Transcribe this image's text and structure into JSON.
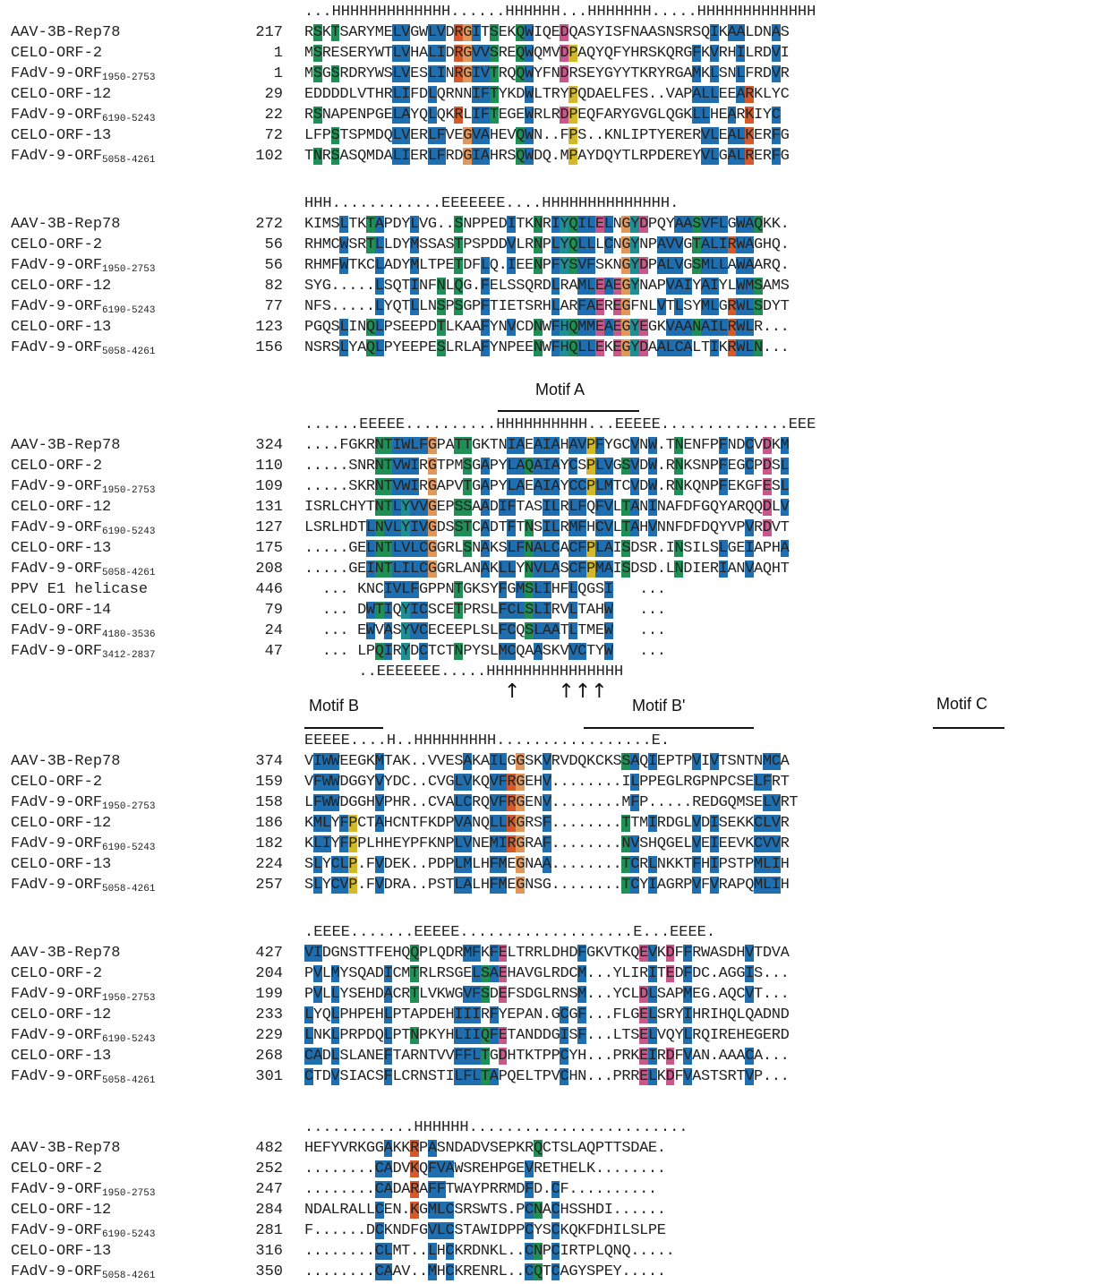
{
  "blocks": [
    {
      "ss": "...HHHHHHHHHHHHH......HHHHHH...HHHHHHH.....HHHHHHHHHHHHH",
      "rows": [
        {
          "name": "AAV-3B-Rep78",
          "sub": "",
          "num": "217",
          "seq": "RSKTSARYMELVGWLVDRGITSEKQWIQEDQASYISFNAASNSRSQIKAALDNAS"
        },
        {
          "name": "CELO-ORF-2",
          "sub": "",
          "num": "1",
          "seq": "MSRESERYWTLVHALIDRGVVSREQWQMVDPAQYQFYHRSKQRGFKVRHILRDVI"
        },
        {
          "name": "FAdV-9-ORF",
          "sub": "1950-2753",
          "num": "1",
          "seq": "MSGSRDRYWSLVESLINRGIVTRQQWYFNDRSEYGYYTKRYRGAMKLSNLFRDVR"
        },
        {
          "name": "CELO-ORF-12",
          "sub": "",
          "num": "29",
          "seq": "EDDDDLVTHRLIFDLQRNNIFTYKDWLTRYPQDAELFES..VAPALLEEARKLYC"
        },
        {
          "name": "FAdV-9-ORF",
          "sub": "6190-5243",
          "num": "22",
          "seq": "RSNAPENPGELAYQLQKRLIFTEGEWRLRDPEQFARYGVGLQGKLLHEARKIYC"
        },
        {
          "name": "CELO-ORF-13",
          "sub": "",
          "num": "72",
          "seq": "LFPSTSPMDQLVERLFVEGVAHEVQWN..FPS..KNLIPTYERERVLEALKERFG"
        },
        {
          "name": "FAdV-9-ORF",
          "sub": "5058-4261",
          "num": "102",
          "seq": "TNRSASQMDALIERLFRDGIAHRSQWDQ.MPAYDQYTLRPDEREYVLGALRERFG"
        }
      ]
    },
    {
      "ss": "HHH............EEEEEEE....HHHHHHHHHHHHHH.",
      "rows": [
        {
          "name": "AAV-3B-Rep78",
          "sub": "",
          "num": "272",
          "seq": "KIMSLTKTAPDYLVG..SNPPEDITKNRIYQILELNGYDPQYAASVFLGWAQKK."
        },
        {
          "name": "CELO-ORF-2",
          "sub": "",
          "num": "56",
          "seq": "RHMCWSRTLLDYMSSASTPSPDDVLRNPLYQLLLCNGYNPAVVGTALIRWAGHQ."
        },
        {
          "name": "FAdV-9-ORF",
          "sub": "1950-2753",
          "num": "56",
          "seq": "RHMFWTKCLADYMLTPETDFLQ.IEENPFYSVFSKNGYDPALVGSMLLAWAARQ."
        },
        {
          "name": "CELO-ORF-12",
          "sub": "",
          "num": "82",
          "seq": "SYG.....LSQTINFNLQG.FELSSQRDLRAMLEAEGYNAPVAIYAIYLWMSAMS"
        },
        {
          "name": "FAdV-9-ORF",
          "sub": "6190-5243",
          "num": "77",
          "seq": "NFS.....LYQTLLNSPSGPFTIETSRHLARFAEREGFNLVTLSYMLGRWLSDYT"
        },
        {
          "name": "CELO-ORF-13",
          "sub": "",
          "num": "123",
          "seq": "PGQSLINQLPSEEPDTLKAAFYNVCDNWFHQMMEAEGYEGKVAANAILRWLR..."
        },
        {
          "name": "FAdV-9-ORF",
          "sub": "5058-4261",
          "num": "156",
          "seq": "NSRSLYAQLPYEEPESLRLAFYNPEENWFHQLLEKEGYDAALCALTIKRWLN..."
        }
      ]
    },
    {
      "ss": "......EEEEE..........HHHHHHHHHH...EEEEE..............EEE",
      "ss2": "  ..EEEEEEE.....HHHHHHHHHHHHHHH",
      "rows": [
        {
          "name": "AAV-3B-Rep78",
          "sub": "",
          "num": "324",
          "seq": "....FGKRNTIWLFGPATTGKTNIAEAIAHAVPFYGCVNW.TNENFPFNDCVDKM"
        },
        {
          "name": "CELO-ORF-2",
          "sub": "",
          "num": "110",
          "seq": ".....SNRNTVWIRGTPMSGAPYLAQAIAYCSPLVGSVDW.RNKSNPFEGCPDSL"
        },
        {
          "name": "FAdV-9-ORF",
          "sub": "1950-2753",
          "num": "109",
          "seq": ".....SKRNTVWIRGAPVTGAPYLAEAIAYCCPLMTCVDW.RNKQNPFEKGFESL"
        },
        {
          "name": "CELO-ORF-12",
          "sub": "",
          "num": "131",
          "seq": "ISRLCHYTNTLYVVGEPSSAADIFTASILRLFQFVLTANINAFDFGQYARQQDLV"
        },
        {
          "name": "FAdV-9-ORF",
          "sub": "6190-5243",
          "num": "127",
          "seq": "LSRLHDTLNVLYIVGDSSTCADTFTNSILRMFHCVLTAHVNNFDFDQYVPVRDVT"
        },
        {
          "name": "CELO-ORF-13",
          "sub": "",
          "num": "175",
          "seq": ".....GELNTLVLCGGRLSNAKSLFNALCACFPLAISDSR.INSILSLGEIAPHA"
        },
        {
          "name": "FAdV-9-ORF",
          "sub": "5058-4261",
          "num": "208",
          "seq": ".....GEINTLILCGGRLANAKLLYNVLASCFPMAISDSD.LNDIERIANVAQHT"
        },
        {
          "name": "PPV E1 helicase",
          "sub": "",
          "num": "446",
          "seq": "  ... KNCIVLFGPPNTGKSYFGMSLIHFLQGSI   ..."
        },
        {
          "name": "CELO-ORF-14",
          "sub": "",
          "num": "79",
          "seq": "  ... DWTIQYICSCETPRSLFCLSLIRVLTAHW   ..."
        },
        {
          "name": "FAdV-9-ORF",
          "sub": "4180-3536",
          "num": "24",
          "seq": "  ... EWVASYVCECEEPLSLFCQSLAATLTMEW   ..."
        },
        {
          "name": "FAdV-9-ORF",
          "sub": "3412-2837",
          "num": "47",
          "seq": "  ... LPQIRYDCTCTNPYSLMCQAASKVVCTYW   ..."
        }
      ],
      "arrows": "↑      ↑↑↑"
    },
    {
      "ss": "EEEEE....H..HHHHHHHHH.................E.",
      "rows": [
        {
          "name": "AAV-3B-Rep78",
          "sub": "",
          "num": "374",
          "seq": "VIWWEEGKMTAK..VVESAKAILGGSKVRVDQKCKSSAQIEPTPVIVTSNTNMCA"
        },
        {
          "name": "CELO-ORF-2",
          "sub": "",
          "num": "159",
          "seq": "VFWWDGGYVYDC..CVGLVKQVFRGEHV........ILPPEGLRGPNPCSELFRT"
        },
        {
          "name": "FAdV-9-ORF",
          "sub": "1950-2753",
          "num": "158",
          "seq": "LFWWDGGHVPHR..CVALCRQVFRGENV........MFP.....REDGQMSELVRT"
        },
        {
          "name": "CELO-ORF-12",
          "sub": "",
          "num": "186",
          "seq": "KMLYFPCTAHCNTFKDPVANQLLKGRSF........TTMIRDGLVDISEKKCLVR"
        },
        {
          "name": "FAdV-9-ORF",
          "sub": "6190-5243",
          "num": "182",
          "seq": "KLIYFPPLHHEYPFKNPLVNEMIRGRAF........NVSHQGELVEIEEVKCVVR"
        },
        {
          "name": "CELO-ORF-13",
          "sub": "",
          "num": "224",
          "seq": "SLYCLP.FVDEK..PDPLMLHFMEGNAA........TCRLNKKTFHIPSTPMLIH"
        },
        {
          "name": "FAdV-9-ORF",
          "sub": "5058-4261",
          "num": "257",
          "seq": "SLYCVP.FVDRA..PSTLALHFMEGNSG........TCYIAGRPVFVRAPQMLIH"
        }
      ]
    },
    {
      "ss": ".EEEE.......EEEEE...................E...EEEE.",
      "rows": [
        {
          "name": "AAV-3B-Rep78",
          "sub": "",
          "num": "427",
          "seq": "VIDGNSTTFEHQQPLQDRMFKFELTRRLDHDFGKVTKQEVKDFFRWASDHVTDVA"
        },
        {
          "name": "CELO-ORF-2",
          "sub": "",
          "num": "204",
          "seq": "PVLMYSQADICMTRLRSGELSAEHAVGLRDCM...YLIRITEDFDC.AGGIS..."
        },
        {
          "name": "FAdV-9-ORF",
          "sub": "1950-2753",
          "num": "199",
          "seq": "PVLLYSEHDACRTLVKWGVFSDEFSDGLRNSM...YCLDLSAPMEG.AQCVT..."
        },
        {
          "name": "CELO-ORF-12",
          "sub": "",
          "num": "233",
          "seq": "LYQLPHPEHLPTAPDEHIIIRFYEPAN.GCGF...FLGELSRYIHRIHQLQADND"
        },
        {
          "name": "FAdV-9-ORF",
          "sub": "6190-5243",
          "num": "229",
          "seq": "LNKLPRPDQLPTNPKYHLIIQFETANDDGISF...LTSELVQYLRQIREHEGERD"
        },
        {
          "name": "CELO-ORF-13",
          "sub": "",
          "num": "268",
          "seq": "CADLSLANEFTARNTVVFFLTGDHTKTPPCYH...PRKEIRDFVAN.AAACA..."
        },
        {
          "name": "FAdV-9-ORF",
          "sub": "5058-4261",
          "num": "301",
          "seq": "CTDVSIACSFLCRNSTILFLTAPQELTPVCHN...PRRELKDFVASTSRTVP..."
        }
      ]
    },
    {
      "ss": "............HHHHHH........................",
      "rows": [
        {
          "name": "AAV-3B-Rep78",
          "sub": "",
          "num": "482",
          "seq": "HEFYVRKGGAKKRPASNDADVSEPKRQCTSLAQPTTSDAE."
        },
        {
          "name": "CELO-ORF-2",
          "sub": "",
          "num": "252",
          "seq": "........CADVKQFVAWSREHPGEVRETHELK........"
        },
        {
          "name": "FAdV-9-ORF",
          "sub": "1950-2753",
          "num": "247",
          "seq": "........CADARAFFTWAYPRRMDFD.CF.........."
        },
        {
          "name": "CELO-ORF-12",
          "sub": "",
          "num": "284",
          "seq": "NDALRALLCEN.KGMLCSRSWTS.PCNACHSSHDI......"
        },
        {
          "name": "FAdV-9-ORF",
          "sub": "6190-5243",
          "num": "281",
          "seq": "F......DCKNDFGVLCSTAWIDPPCYSCKQKFDHILSLPE"
        },
        {
          "name": "CELO-ORF-13",
          "sub": "",
          "num": "316",
          "seq": "........CLMT..LHCKRDNKL..CNPCIRTPLQNQ....."
        },
        {
          "name": "FAdV-9-ORF",
          "sub": "5058-4261",
          "num": "350",
          "seq": "........CAAV..MHCKRENRL..CQTCAGYSPEY....."
        }
      ]
    }
  ],
  "motifs": {
    "a": "Motif A",
    "b": "Motif B",
    "bprime": "Motif B'",
    "c": "Motif C"
  },
  "colors": {
    "blue": "#1f6fb0",
    "orange": "#e1965a",
    "green": "#1f8f55",
    "yellow": "#d4b82c",
    "pink": "#c8588a",
    "teal": "#1f8f95"
  }
}
